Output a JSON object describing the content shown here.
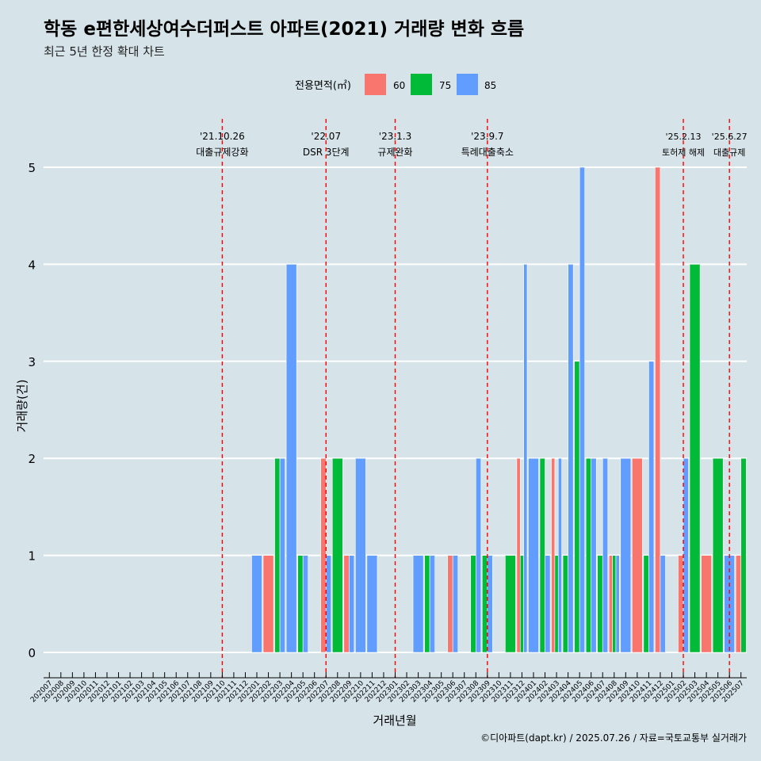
{
  "chart_data": {
    "type": "bar",
    "title": "학동 e편한세상여수더퍼스트 아파트(2021) 거래량 변화 흐름",
    "subtitle": "최근 5년 한정 확대 차트",
    "xlabel": "거래년월",
    "ylabel": "거래량(건)",
    "legend_title": "전용면적(㎡)",
    "legend_position": "top",
    "caption": "©디아파트(dapt.kr) / 2025.07.26 / 자료=국토교통부 실거래가",
    "ylim": [
      0,
      5
    ],
    "yticks": [
      0,
      1,
      2,
      3,
      4,
      5
    ],
    "grid": true,
    "colors": {
      "60": "#f8766d",
      "75": "#00ba38",
      "85": "#619cff",
      "vline": "#ff0000",
      "background": "#d6e4ea",
      "grid": "#ffffff"
    },
    "categories": [
      "202007",
      "202008",
      "202009",
      "202010",
      "202011",
      "202012",
      "202101",
      "202102",
      "202103",
      "202104",
      "202105",
      "202106",
      "202107",
      "202108",
      "202109",
      "202110",
      "202111",
      "202112",
      "202201",
      "202202",
      "202203",
      "202204",
      "202205",
      "202206",
      "202207",
      "202208",
      "202209",
      "202210",
      "202211",
      "202212",
      "202301",
      "202302",
      "202303",
      "202304",
      "202305",
      "202306",
      "202307",
      "202308",
      "202309",
      "202310",
      "202311",
      "202312",
      "202401",
      "202402",
      "202403",
      "202404",
      "202405",
      "202406",
      "202407",
      "202408",
      "202409",
      "202410",
      "202411",
      "202412",
      "202501",
      "202502",
      "202503",
      "202504",
      "202505",
      "202506",
      "202507"
    ],
    "series": [
      {
        "name": "60",
        "values": [
          0,
          0,
          0,
          0,
          0,
          0,
          0,
          0,
          0,
          0,
          0,
          0,
          0,
          0,
          0,
          0,
          0,
          0,
          0,
          1,
          0,
          0,
          0,
          0,
          2,
          0,
          1,
          0,
          0,
          0,
          0,
          0,
          0,
          0,
          0,
          1,
          0,
          0,
          0,
          0,
          0,
          2,
          0,
          0,
          2,
          0,
          0,
          0,
          0,
          1,
          0,
          2,
          0,
          5,
          0,
          1,
          0,
          1,
          0,
          0,
          1
        ]
      },
      {
        "name": "75",
        "values": [
          0,
          0,
          0,
          0,
          0,
          0,
          0,
          0,
          0,
          0,
          0,
          0,
          0,
          0,
          0,
          0,
          0,
          0,
          0,
          0,
          2,
          0,
          1,
          0,
          0,
          2,
          0,
          0,
          0,
          0,
          0,
          0,
          0,
          1,
          0,
          0,
          0,
          1,
          1,
          0,
          1,
          1,
          0,
          2,
          1,
          1,
          3,
          2,
          1,
          1,
          0,
          0,
          1,
          0,
          0,
          0,
          4,
          0,
          2,
          0,
          2
        ]
      },
      {
        "name": "85",
        "values": [
          0,
          0,
          0,
          0,
          0,
          0,
          0,
          0,
          0,
          0,
          0,
          0,
          0,
          0,
          0,
          0,
          0,
          0,
          1,
          0,
          2,
          4,
          1,
          0,
          1,
          0,
          1,
          2,
          1,
          0,
          0,
          0,
          1,
          1,
          0,
          1,
          0,
          2,
          1,
          0,
          0,
          4,
          2,
          1,
          2,
          4,
          5,
          2,
          2,
          1,
          2,
          0,
          3,
          1,
          0,
          2,
          0,
          0,
          0,
          1,
          0
        ]
      }
    ],
    "annotations": [
      {
        "category": "202110",
        "date": "'21.10.26",
        "label": "대출규제강화"
      },
      {
        "category": "202207",
        "date": "'22.07",
        "label": "DSR 3단계"
      },
      {
        "category": "202301",
        "date": "'23.1.3",
        "label": "규제완화"
      },
      {
        "category": "202309",
        "date": "'23.9.7",
        "label": "특례대출축소"
      },
      {
        "category": "202502",
        "date": "'25.2.13",
        "label": "토허제 해제"
      },
      {
        "category": "202506",
        "date": "'25.6.27",
        "label": "대출규제"
      }
    ]
  }
}
